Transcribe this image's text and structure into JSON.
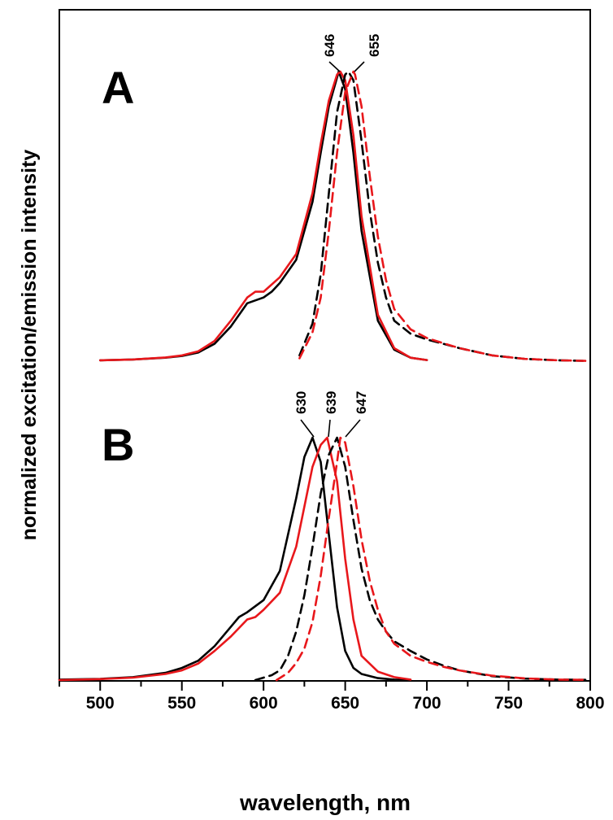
{
  "chart_data": {
    "type": "line",
    "xlabel": "wavelength, nm",
    "ylabel": "normalized excitation/emission intensity",
    "xlim": [
      475,
      800
    ],
    "xticks": [
      500,
      550,
      600,
      650,
      700,
      750,
      800
    ],
    "grid": false,
    "legend": "none",
    "colors": {
      "black": "#000000",
      "red": "#e8171b"
    },
    "panels": [
      {
        "label": "A",
        "peak_labels": [
          "646",
          "655"
        ],
        "series": [
          {
            "color": "#000000",
            "style": "solid",
            "x": [
              500,
              520,
              540,
              550,
              560,
              570,
              580,
              590,
              600,
              605,
              610,
              620,
              630,
              635,
              640,
              645,
              646,
              650,
              655,
              660,
              670,
              680,
              690,
              700
            ],
            "y": [
              0.003,
              0.006,
              0.012,
              0.018,
              0.03,
              0.06,
              0.12,
              0.2,
              0.22,
              0.24,
              0.27,
              0.35,
              0.55,
              0.72,
              0.88,
              0.98,
              1.0,
              0.94,
              0.72,
              0.45,
              0.14,
              0.04,
              0.012,
              0.004
            ]
          },
          {
            "color": "#e8171b",
            "style": "solid",
            "x": [
              500,
              520,
              540,
              550,
              560,
              570,
              580,
              590,
              595,
              600,
              610,
              620,
              630,
              635,
              640,
              645,
              647,
              650,
              655,
              660,
              670,
              680,
              690,
              700
            ],
            "y": [
              0.003,
              0.006,
              0.013,
              0.02,
              0.034,
              0.07,
              0.14,
              0.22,
              0.24,
              0.24,
              0.29,
              0.37,
              0.58,
              0.75,
              0.9,
              0.99,
              1.0,
              0.97,
              0.78,
              0.5,
              0.16,
              0.045,
              0.012,
              0.004
            ]
          },
          {
            "color": "#000000",
            "style": "dashed",
            "x": [
              622,
              630,
              635,
              640,
              645,
              650,
              652,
              655,
              660,
              665,
              670,
              675,
              680,
              690,
              700,
              710,
              720,
              740,
              760,
              780,
              797
            ],
            "y": [
              0.02,
              0.13,
              0.3,
              0.58,
              0.86,
              0.99,
              1.0,
              0.97,
              0.76,
              0.52,
              0.34,
              0.22,
              0.14,
              0.095,
              0.075,
              0.06,
              0.045,
              0.02,
              0.008,
              0.003,
              0.001
            ]
          },
          {
            "color": "#e8171b",
            "style": "dashed",
            "x": [
              622,
              630,
              635,
              640,
              645,
              650,
              655,
              656,
              660,
              665,
              670,
              675,
              680,
              690,
              700,
              710,
              720,
              740,
              760,
              780,
              797
            ],
            "y": [
              0.01,
              0.1,
              0.22,
              0.45,
              0.72,
              0.93,
              1.0,
              0.99,
              0.88,
              0.64,
              0.43,
              0.28,
              0.18,
              0.11,
              0.08,
              0.062,
              0.045,
              0.02,
              0.008,
              0.003,
              0.001
            ]
          }
        ]
      },
      {
        "label": "B",
        "peak_labels": [
          "630",
          "639",
          "647"
        ],
        "series": [
          {
            "color": "#000000",
            "style": "solid",
            "x": [
              475,
              500,
              520,
              540,
              550,
              560,
              570,
              580,
              585,
              590,
              600,
              610,
              620,
              625,
              630,
              635,
              640,
              645,
              650,
              655,
              660,
              670,
              680,
              690
            ],
            "y": [
              0.002,
              0.005,
              0.012,
              0.03,
              0.05,
              0.08,
              0.14,
              0.22,
              0.26,
              0.28,
              0.33,
              0.45,
              0.75,
              0.92,
              1.0,
              0.9,
              0.6,
              0.3,
              0.12,
              0.05,
              0.025,
              0.008,
              0.002,
              0.0
            ]
          },
          {
            "color": "#e8171b",
            "style": "solid",
            "x": [
              475,
              500,
              520,
              540,
              550,
              560,
              570,
              580,
              590,
              595,
              600,
              610,
              620,
              630,
              635,
              639,
              645,
              650,
              655,
              660,
              670,
              680,
              690
            ],
            "y": [
              0.0,
              0.004,
              0.01,
              0.025,
              0.04,
              0.068,
              0.12,
              0.18,
              0.25,
              0.26,
              0.29,
              0.36,
              0.55,
              0.88,
              0.97,
              1.0,
              0.82,
              0.5,
              0.25,
              0.1,
              0.035,
              0.012,
              0.002
            ]
          },
          {
            "color": "#000000",
            "style": "dashed",
            "x": [
              595,
              605,
              610,
              615,
              620,
              625,
              630,
              635,
              640,
              645,
              650,
              655,
              660,
              665,
              670,
              675,
              680,
              690,
              700,
              710,
              720,
              740,
              760,
              780,
              797
            ],
            "y": [
              0.0,
              0.02,
              0.04,
              0.1,
              0.2,
              0.35,
              0.55,
              0.77,
              0.93,
              1.0,
              0.88,
              0.66,
              0.46,
              0.33,
              0.25,
              0.2,
              0.16,
              0.12,
              0.085,
              0.06,
              0.04,
              0.016,
              0.006,
              0.002,
              0.001
            ]
          },
          {
            "color": "#e8171b",
            "style": "dashed",
            "x": [
              608,
              615,
              620,
              625,
              630,
              635,
              640,
              645,
              647,
              650,
              655,
              660,
              665,
              670,
              675,
              680,
              690,
              700,
              710,
              720,
              740,
              760,
              780,
              797
            ],
            "y": [
              0.0,
              0.03,
              0.07,
              0.13,
              0.24,
              0.43,
              0.67,
              0.9,
              1.0,
              0.98,
              0.8,
              0.58,
              0.41,
              0.29,
              0.2,
              0.15,
              0.1,
              0.075,
              0.055,
              0.04,
              0.018,
              0.007,
              0.002,
              0.001
            ]
          }
        ]
      }
    ]
  }
}
